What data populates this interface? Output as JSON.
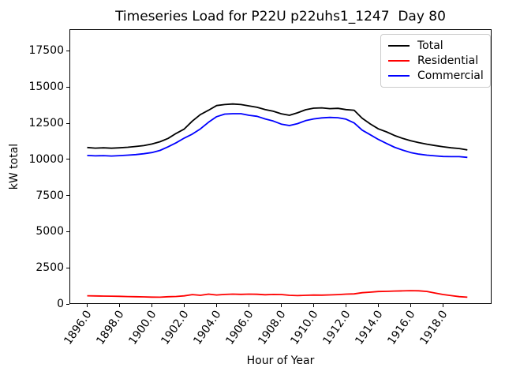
{
  "window": {
    "background": "#ffffff"
  },
  "chart_data": {
    "type": "line",
    "title": "Timeseries Load for P22U p22uhs1_1247  Day 80",
    "xlabel": "Hour of Year",
    "ylabel": "kW total",
    "xlim": [
      1894.9,
      1921.0
    ],
    "ylim": [
      0,
      19000
    ],
    "grid": false,
    "legend_position": "upper right",
    "x_ticks": [
      {
        "value": 1896,
        "label": "1896.0"
      },
      {
        "value": 1898,
        "label": "1898.0"
      },
      {
        "value": 1900,
        "label": "1900.0"
      },
      {
        "value": 1902,
        "label": "1902.0"
      },
      {
        "value": 1904,
        "label": "1904.0"
      },
      {
        "value": 1906,
        "label": "1906.0"
      },
      {
        "value": 1908,
        "label": "1908.0"
      },
      {
        "value": 1910,
        "label": "1910.0"
      },
      {
        "value": 1912,
        "label": "1912.0"
      },
      {
        "value": 1914,
        "label": "1914.0"
      },
      {
        "value": 1916,
        "label": "1916.0"
      },
      {
        "value": 1918,
        "label": "1918.0"
      }
    ],
    "y_ticks": [
      {
        "value": 0,
        "label": "0"
      },
      {
        "value": 2500,
        "label": "2500"
      },
      {
        "value": 5000,
        "label": "5000"
      },
      {
        "value": 7500,
        "label": "7500"
      },
      {
        "value": 10000,
        "label": "10000"
      },
      {
        "value": 12500,
        "label": "12500"
      },
      {
        "value": 15000,
        "label": "15000"
      },
      {
        "value": 17500,
        "label": "17500"
      }
    ],
    "x": [
      1896.0,
      1896.5,
      1897.0,
      1897.5,
      1898.0,
      1898.5,
      1899.0,
      1899.5,
      1900.0,
      1900.5,
      1901.0,
      1901.5,
      1902.0,
      1902.5,
      1903.0,
      1903.5,
      1904.0,
      1904.5,
      1905.0,
      1905.5,
      1906.0,
      1906.5,
      1907.0,
      1907.5,
      1908.0,
      1908.5,
      1909.0,
      1909.5,
      1910.0,
      1910.5,
      1911.0,
      1911.5,
      1912.0,
      1912.5,
      1913.0,
      1913.5,
      1914.0,
      1914.5,
      1915.0,
      1915.5,
      1916.0,
      1916.5,
      1917.0,
      1917.5,
      1918.0,
      1918.5,
      1919.0,
      1919.5
    ],
    "series": [
      {
        "name": "Total",
        "color": "#000000",
        "values": [
          10820,
          10780,
          10800,
          10770,
          10800,
          10840,
          10890,
          10950,
          11060,
          11220,
          11450,
          11800,
          12100,
          12650,
          13100,
          13400,
          13720,
          13790,
          13830,
          13790,
          13700,
          13600,
          13440,
          13330,
          13150,
          13050,
          13220,
          13430,
          13540,
          13560,
          13510,
          13530,
          13440,
          13400,
          12840,
          12450,
          12110,
          11900,
          11650,
          11450,
          11290,
          11160,
          11050,
          10960,
          10870,
          10800,
          10750,
          10650
        ]
      },
      {
        "name": "Residential",
        "color": "#ff0000",
        "values": [
          570,
          555,
          545,
          540,
          530,
          515,
          505,
          490,
          475,
          470,
          500,
          520,
          560,
          650,
          600,
          680,
          620,
          660,
          680,
          665,
          680,
          670,
          640,
          660,
          655,
          600,
          580,
          600,
          615,
          610,
          630,
          650,
          680,
          700,
          780,
          820,
          860,
          875,
          895,
          905,
          925,
          910,
          870,
          760,
          655,
          580,
          510,
          470
        ]
      },
      {
        "name": "Commercial",
        "color": "#0000ff",
        "values": [
          10270,
          10240,
          10260,
          10230,
          10260,
          10290,
          10330,
          10390,
          10470,
          10620,
          10870,
          11150,
          11470,
          11750,
          12110,
          12570,
          12950,
          13130,
          13160,
          13160,
          13050,
          12980,
          12800,
          12650,
          12440,
          12340,
          12470,
          12680,
          12800,
          12870,
          12900,
          12880,
          12780,
          12520,
          12020,
          11700,
          11380,
          11100,
          10840,
          10640,
          10470,
          10360,
          10290,
          10240,
          10200,
          10190,
          10190,
          10140
        ]
      }
    ]
  }
}
